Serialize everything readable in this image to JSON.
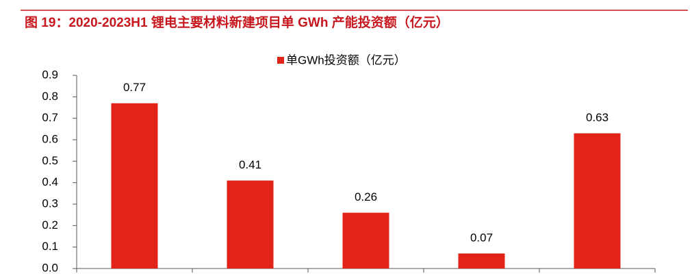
{
  "chart_data": {
    "type": "bar",
    "title": "图 19：2020-2023H1 锂电主要材料新建项目单 GWh 产能投资额（亿元）",
    "categories": [
      null,
      null,
      null,
      null,
      null
    ],
    "series": [
      {
        "name": "单GWh投资额（亿元）",
        "color": "#e2231a",
        "values": [
          0.77,
          0.41,
          0.26,
          0.07,
          0.63
        ]
      }
    ],
    "ylim": [
      0,
      0.9
    ],
    "yticks": [
      {
        "value": 0,
        "label": "0.0"
      },
      0.1,
      0.2,
      0.3,
      0.4,
      0.5,
      0.6,
      0.7,
      0.8,
      0.9
    ],
    "legend": "top"
  }
}
